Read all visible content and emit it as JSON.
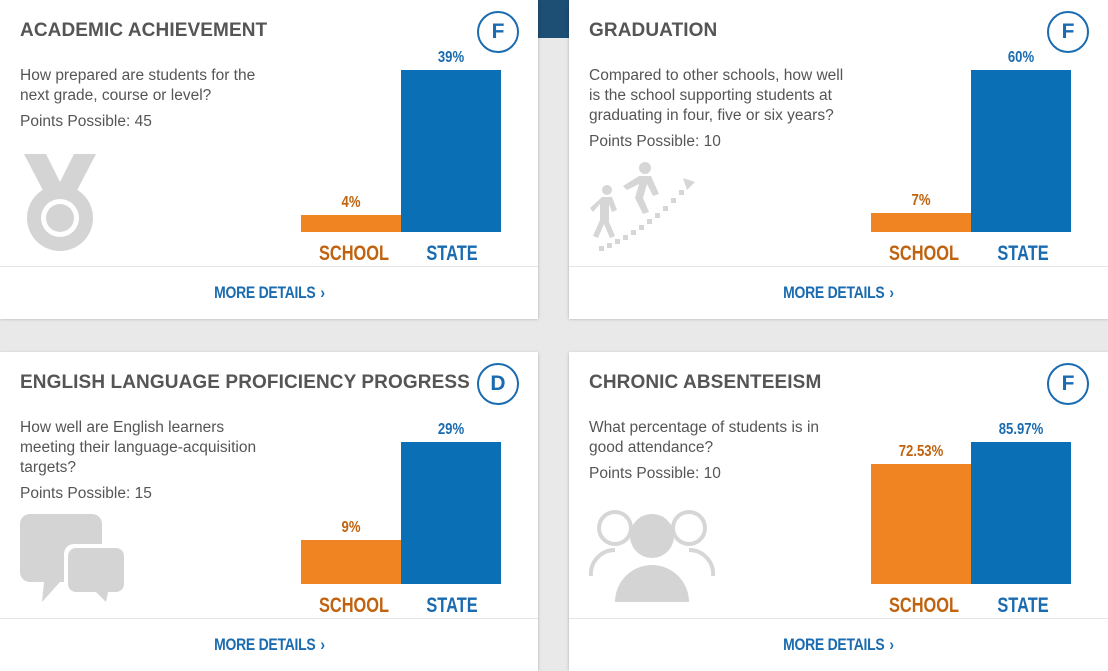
{
  "cards": [
    {
      "title": "ACADEMIC ACHIEVEMENT",
      "grade": "F",
      "description": "How prepared are students for the next grade, course or level?",
      "points": "Points Possible: 45",
      "icon": "medal-icon",
      "link": "MORE DETAILS"
    },
    {
      "title": "GRADUATION",
      "grade": "F",
      "description": "Compared to other schools, how well is the school supporting students at graduating in four, five or six years?",
      "points": "Points Possible: 10",
      "icon": "climbing-stairs-icon",
      "link": "MORE DETAILS"
    },
    {
      "title": "ENGLISH LANGUAGE PROFICIENCY PROGRESS",
      "grade": "D",
      "description": "How well are English learners meeting their language-acquisition targets?",
      "points": "Points Possible: 15",
      "icon": "speech-bubbles-icon",
      "link": "MORE DETAILS"
    },
    {
      "title": "CHRONIC ABSENTEEISM",
      "grade": "F",
      "description": "What percentage of students is in good attendance?",
      "points": "Points Possible: 10",
      "icon": "group-people-icon",
      "link": "MORE DETAILS"
    }
  ],
  "chart_data": [
    {
      "type": "bar",
      "categories": [
        "SCHOOL",
        "STATE"
      ],
      "values": [
        4,
        39
      ],
      "labels": [
        "4%",
        "39%"
      ],
      "ylim": [
        0,
        39
      ]
    },
    {
      "type": "bar",
      "categories": [
        "SCHOOL",
        "STATE"
      ],
      "values": [
        7,
        60
      ],
      "labels": [
        "7%",
        "60%"
      ],
      "ylim": [
        0,
        60
      ]
    },
    {
      "type": "bar",
      "categories": [
        "SCHOOL",
        "STATE"
      ],
      "values": [
        9,
        29
      ],
      "labels": [
        "9%",
        "29%"
      ],
      "ylim": [
        0,
        29
      ]
    },
    {
      "type": "bar",
      "categories": [
        "SCHOOL",
        "STATE"
      ],
      "values": [
        72.53,
        85.97
      ],
      "labels": [
        "72.53%",
        "85.97%"
      ],
      "ylim": [
        0,
        85.97
      ]
    }
  ],
  "colors": {
    "school": "#f08423",
    "state": "#0a6fb5",
    "accent": "#1a6bb0"
  }
}
